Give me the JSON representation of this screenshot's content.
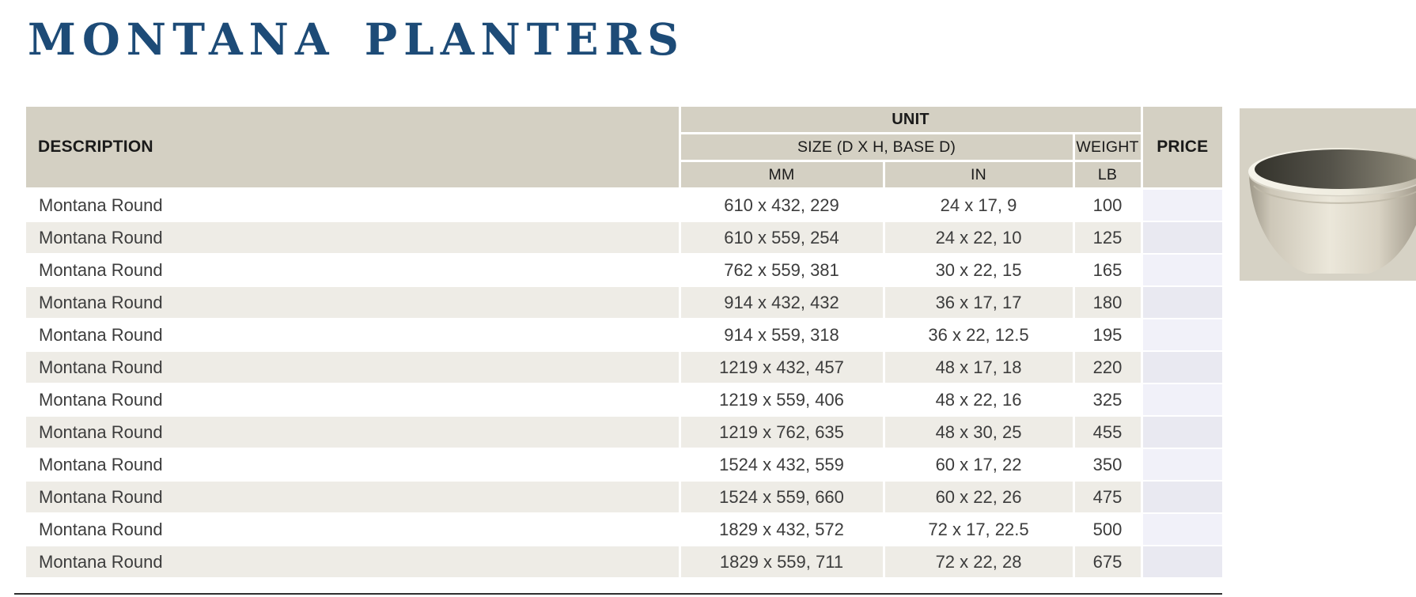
{
  "page": {
    "title": "MONTANA PLANTERS"
  },
  "colors": {
    "title_blue": "#1d4b77",
    "header_bg": "#d4d0c3",
    "header_text": "#1a1a1a",
    "row_bg": "#ffffff",
    "row_alt_bg": "#eeece6",
    "price_cell_bg": "#f1f1f9",
    "price_cell_alt_bg": "#e9e9f1",
    "photo_bg": "#d6d2c5",
    "text_dark": "#3c3c3c",
    "bottom_rule": "#2f2f2f"
  },
  "table": {
    "headers": {
      "description": "DESCRIPTION",
      "unit": "UNIT",
      "size": "SIZE (D X H, BASE D)",
      "mm": "MM",
      "in": "IN",
      "weight": "WEIGHT",
      "lb": "LB",
      "price": "PRICE"
    },
    "rows": [
      {
        "description": "Montana Round",
        "mm": "610 x 432, 229",
        "in": "24 x 17, 9",
        "lb": "100",
        "price": ""
      },
      {
        "description": "Montana Round",
        "mm": "610 x 559, 254",
        "in": "24 x 22, 10",
        "lb": "125",
        "price": ""
      },
      {
        "description": "Montana Round",
        "mm": "762 x 559, 381",
        "in": "30 x 22, 15",
        "lb": "165",
        "price": ""
      },
      {
        "description": "Montana Round",
        "mm": "914 x 432, 432",
        "in": "36 x 17, 17",
        "lb": "180",
        "price": ""
      },
      {
        "description": "Montana Round",
        "mm": "914 x 559, 318",
        "in": "36 x 22, 12.5",
        "lb": "195",
        "price": ""
      },
      {
        "description": "Montana Round",
        "mm": "1219 x 432, 457",
        "in": "48 x 17, 18",
        "lb": "220",
        "price": ""
      },
      {
        "description": "Montana Round",
        "mm": "1219 x 559, 406",
        "in": "48 x 22, 16",
        "lb": "325",
        "price": ""
      },
      {
        "description": "Montana Round",
        "mm": "1219 x 762, 635",
        "in": "48 x 30, 25",
        "lb": "455",
        "price": ""
      },
      {
        "description": "Montana Round",
        "mm": "1524 x 432, 559",
        "in": "60 x 17, 22",
        "lb": "350",
        "price": ""
      },
      {
        "description": "Montana Round",
        "mm": "1524 x 559, 660",
        "in": "60 x 22, 26",
        "lb": "475",
        "price": ""
      },
      {
        "description": "Montana Round",
        "mm": "1829 x 432, 572",
        "in": "72 x 17, 22.5",
        "lb": "500",
        "price": ""
      },
      {
        "description": "Montana Round",
        "mm": "1829 x 559, 711",
        "in": "72 x 22, 28",
        "lb": "675",
        "price": ""
      }
    ]
  },
  "product_image": {
    "name": "montana-round-planter-photo"
  }
}
